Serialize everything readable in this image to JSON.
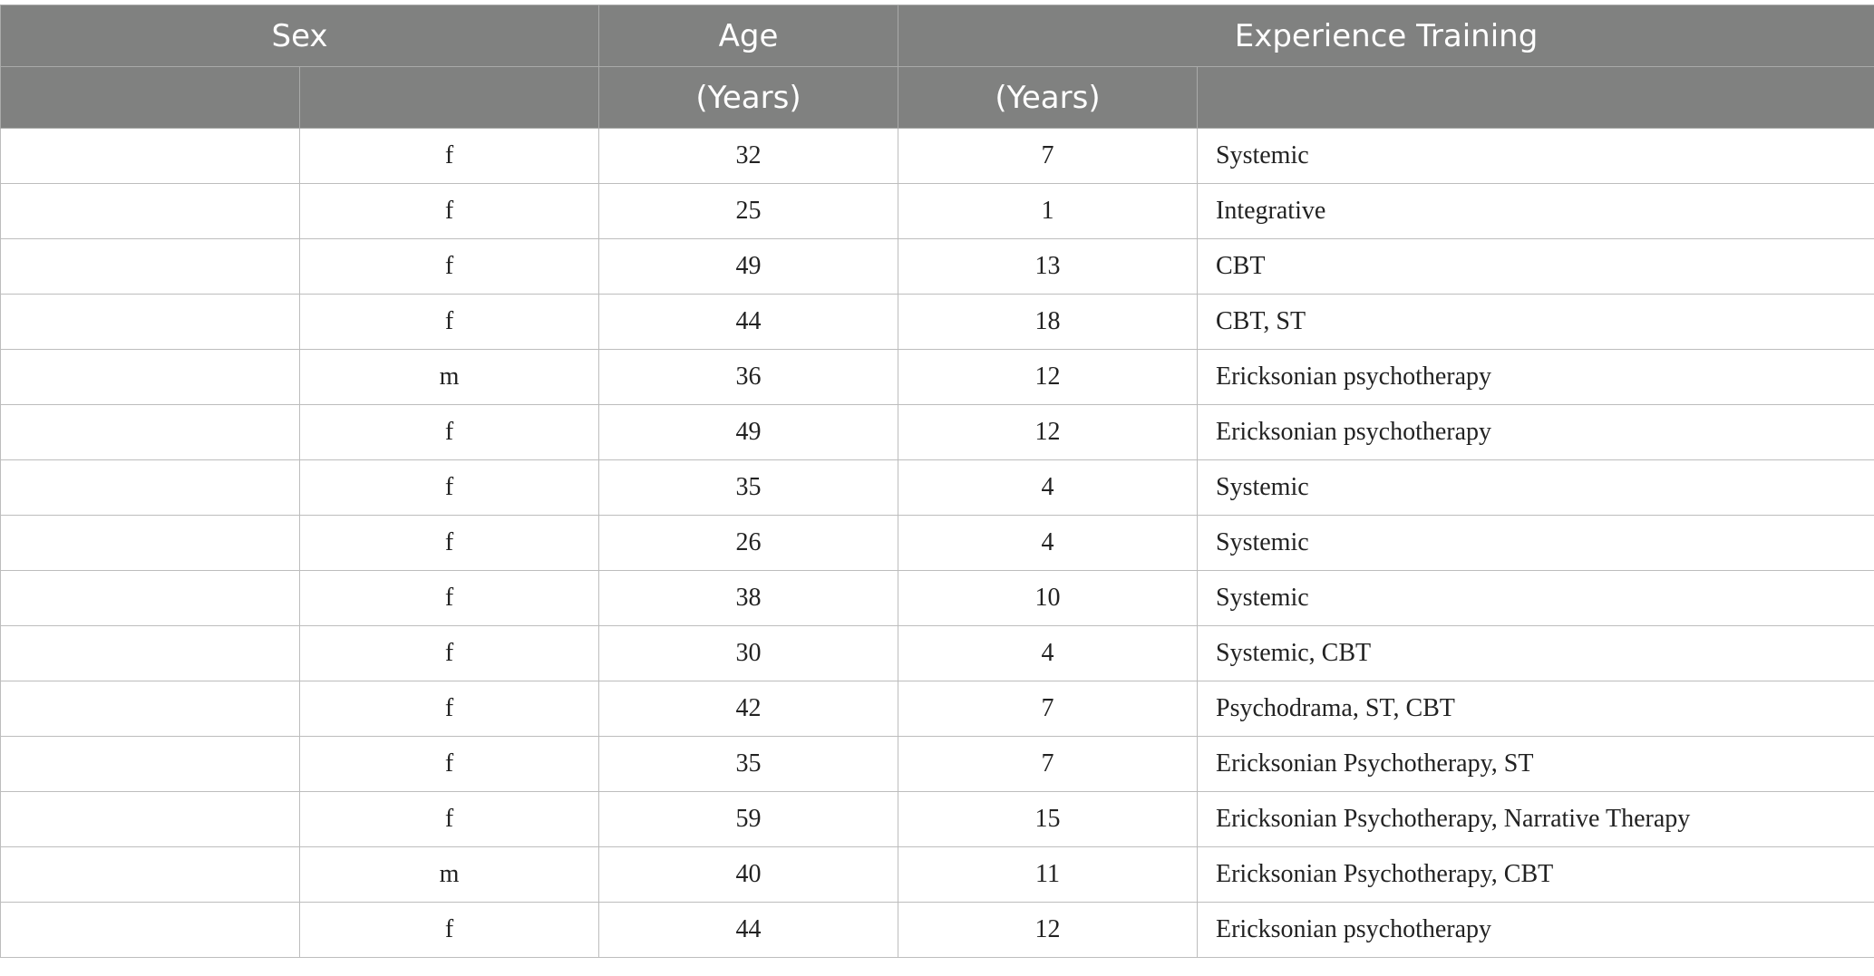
{
  "header": {
    "row1": {
      "sex": "Sex",
      "age": "Age",
      "experience_training": "Experience Training"
    },
    "row2": {
      "col1": "",
      "col2": "",
      "col3": "(Years)",
      "col4": "(Years)",
      "col5": ""
    }
  },
  "rows": [
    {
      "sex": "f",
      "age": "32",
      "experience": "7",
      "training": "Systemic"
    },
    {
      "sex": "f",
      "age": "25",
      "experience": "1",
      "training": "Integrative"
    },
    {
      "sex": "f",
      "age": "49",
      "experience": "13",
      "training": "CBT"
    },
    {
      "sex": "f",
      "age": "44",
      "experience": "18",
      "training": "CBT, ST"
    },
    {
      "sex": "m",
      "age": "36",
      "experience": "12",
      "training": "Ericksonian psychotherapy"
    },
    {
      "sex": "f",
      "age": "49",
      "experience": "12",
      "training": "Ericksonian psychotherapy"
    },
    {
      "sex": "f",
      "age": "35",
      "experience": "4",
      "training": "Systemic"
    },
    {
      "sex": "f",
      "age": "26",
      "experience": "4",
      "training": "Systemic"
    },
    {
      "sex": "f",
      "age": "38",
      "experience": "10",
      "training": "Systemic"
    },
    {
      "sex": "f",
      "age": "30",
      "experience": "4",
      "training": "Systemic, CBT"
    },
    {
      "sex": "f",
      "age": "42",
      "experience": "7",
      "training": "Psychodrama, ST, CBT"
    },
    {
      "sex": "f",
      "age": "35",
      "experience": "7",
      "training": "Ericksonian Psychotherapy, ST"
    },
    {
      "sex": "f",
      "age": "59",
      "experience": "15",
      "training": "Ericksonian Psychotherapy, Narrative Therapy"
    },
    {
      "sex": "m",
      "age": "40",
      "experience": "11",
      "training": "Ericksonian Psychotherapy, CBT"
    },
    {
      "sex": "f",
      "age": "44",
      "experience": "12",
      "training": "Ericksonian psychotherapy"
    }
  ],
  "colors": {
    "header_background": "#808180",
    "header_text": "#ffffff",
    "grid_line": "#bdbdbd"
  }
}
